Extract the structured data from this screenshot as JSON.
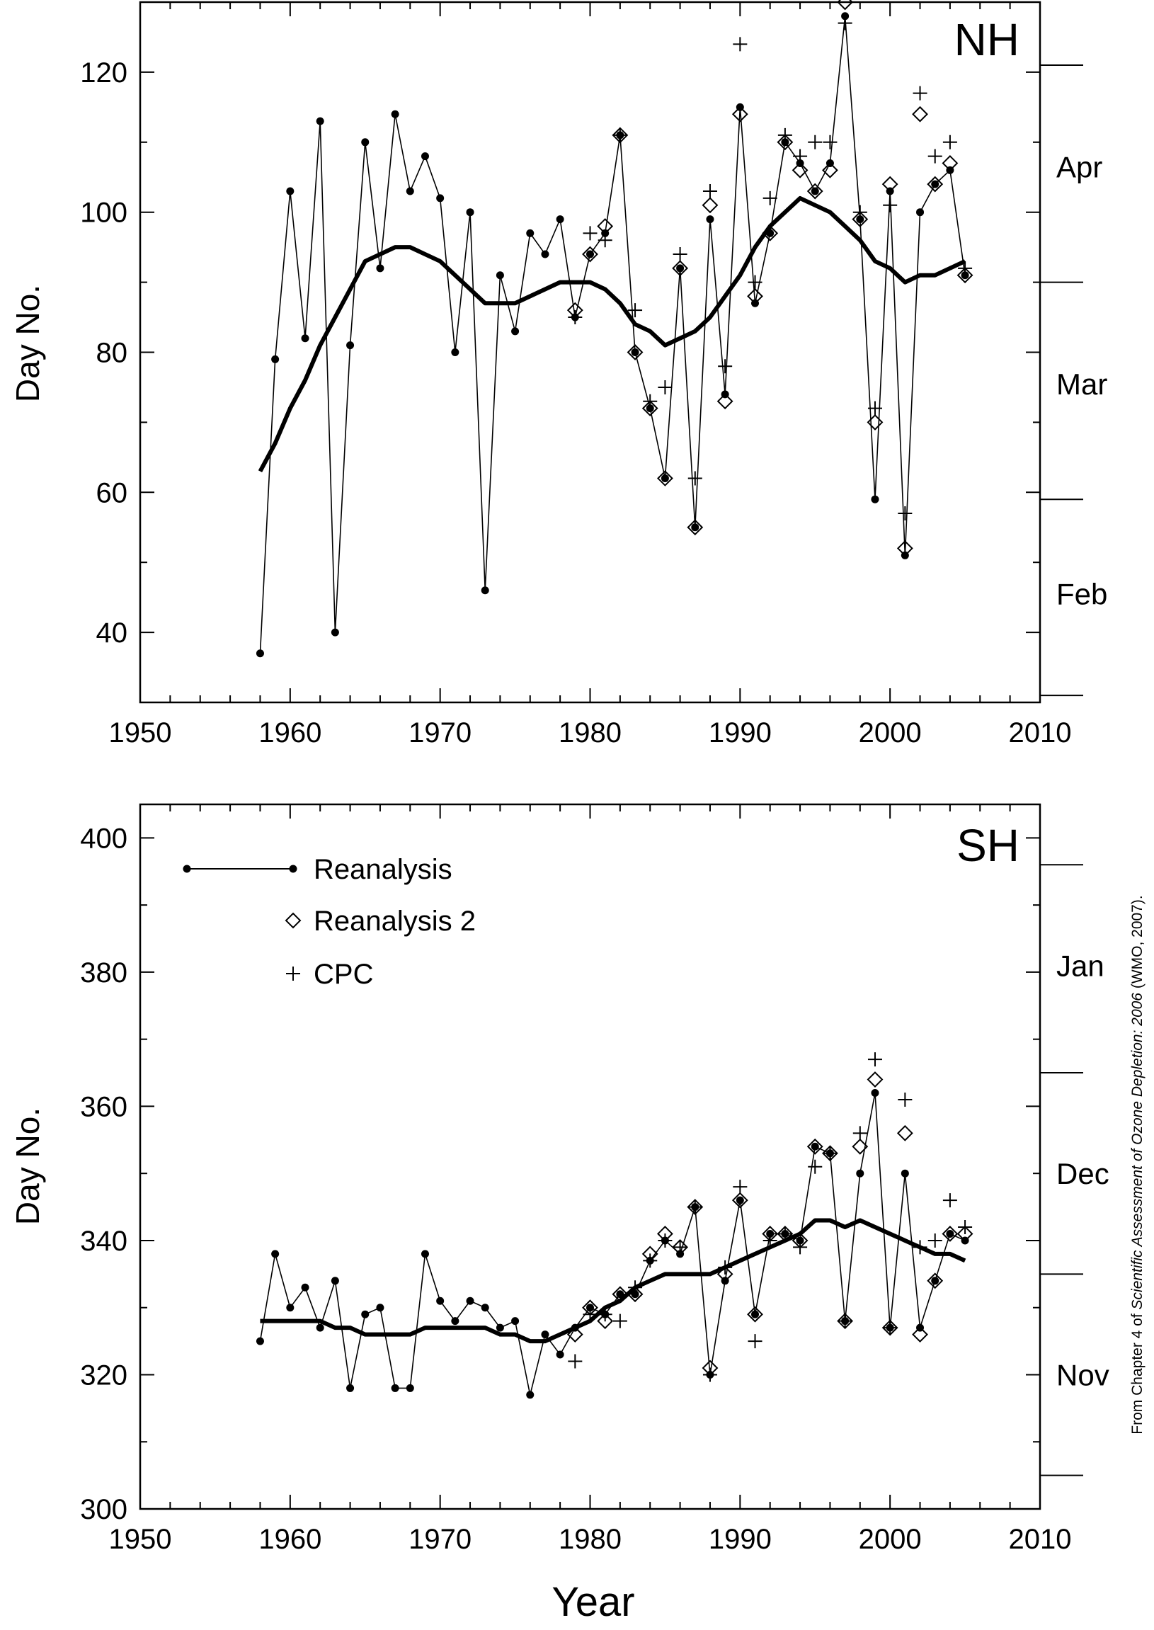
{
  "credit": {
    "prefix": "From Chapter 4 of ",
    "title": "Scientific Assessment of Ozone Depletion: 2006",
    "suffix": " (WMO, 2007)."
  },
  "legend": [
    {
      "label": "Reanalysis",
      "marker": "dot-line"
    },
    {
      "label": "Reanalysis 2",
      "marker": "diamond"
    },
    {
      "label": "CPC",
      "marker": "plus"
    }
  ],
  "chart_data": [
    {
      "type": "line",
      "panel": "NH",
      "ylabel": "Day No.",
      "xlabel": "",
      "xlim": [
        1950,
        2010
      ],
      "ylim": [
        30,
        130
      ],
      "xticks": [
        1950,
        1960,
        1970,
        1980,
        1990,
        2000,
        2010
      ],
      "yticks": [
        40,
        60,
        80,
        100,
        120
      ],
      "month_labels": [
        {
          "label": "Apr",
          "day": 106.5
        },
        {
          "label": "Mar",
          "day": 75.5
        },
        {
          "label": "Feb",
          "day": 45.5
        }
      ],
      "month_boundaries": [
        121,
        90,
        59,
        31
      ],
      "series": [
        {
          "name": "Reanalysis",
          "marker": "dot-line",
          "x": [
            1958,
            1959,
            1960,
            1961,
            1962,
            1963,
            1964,
            1965,
            1966,
            1967,
            1968,
            1969,
            1970,
            1971,
            1972,
            1973,
            1974,
            1975,
            1976,
            1977,
            1978,
            1979,
            1980,
            1981,
            1982,
            1983,
            1984,
            1985,
            1986,
            1987,
            1988,
            1989,
            1990,
            1991,
            1992,
            1993,
            1994,
            1995,
            1996,
            1997,
            1998,
            1999,
            2000,
            2001,
            2002,
            2003,
            2004,
            2005
          ],
          "values": [
            37,
            79,
            103,
            82,
            113,
            40,
            81,
            110,
            92,
            114,
            103,
            108,
            102,
            80,
            100,
            46,
            91,
            83,
            97,
            94,
            99,
            85,
            94,
            97,
            111,
            80,
            72,
            62,
            92,
            55,
            99,
            74,
            115,
            87,
            97,
            110,
            107,
            103,
            107,
            128,
            99,
            59,
            103,
            51,
            100,
            104,
            106,
            91
          ]
        },
        {
          "name": "Reanalysis 2",
          "marker": "diamond",
          "x": [
            1979,
            1980,
            1981,
            1982,
            1983,
            1984,
            1985,
            1986,
            1987,
            1988,
            1989,
            1990,
            1991,
            1992,
            1993,
            1994,
            1995,
            1996,
            1997,
            1998,
            1999,
            2000,
            2001,
            2002,
            2003,
            2004,
            2005
          ],
          "values": [
            86,
            94,
            98,
            111,
            80,
            72,
            62,
            92,
            55,
            101,
            73,
            114,
            88,
            97,
            110,
            106,
            103,
            106,
            130,
            99,
            70,
            104,
            52,
            114,
            104,
            107,
            91
          ]
        },
        {
          "name": "CPC",
          "marker": "plus",
          "x": [
            1979,
            1980,
            1981,
            1982,
            1983,
            1984,
            1985,
            1986,
            1987,
            1988,
            1989,
            1990,
            1991,
            1992,
            1993,
            1994,
            1995,
            1996,
            1997,
            1998,
            1999,
            2000,
            2001,
            2002,
            2003,
            2004,
            2005
          ],
          "values": [
            85,
            97,
            96,
            111,
            86,
            73,
            75,
            94,
            62,
            103,
            78,
            124,
            90,
            102,
            111,
            108,
            110,
            110,
            127,
            100,
            72,
            101,
            57,
            117,
            108,
            110,
            92
          ]
        },
        {
          "name": "",
          "marker": "thick-line",
          "x": [
            1958,
            1959,
            1960,
            1961,
            1962,
            1963,
            1964,
            1965,
            1966,
            1967,
            1968,
            1969,
            1970,
            1971,
            1972,
            1973,
            1974,
            1975,
            1976,
            1977,
            1978,
            1979,
            1980,
            1981,
            1982,
            1983,
            1984,
            1985,
            1986,
            1987,
            1988,
            1989,
            1990,
            1991,
            1992,
            1993,
            1994,
            1995,
            1996,
            1997,
            1998,
            1999,
            2000,
            2001,
            2002,
            2003,
            2004,
            2005
          ],
          "values": [
            63,
            67,
            72,
            76,
            81,
            85,
            89,
            93,
            94,
            95,
            95,
            94,
            93,
            91,
            89,
            87,
            87,
            87,
            88,
            89,
            90,
            90,
            90,
            89,
            87,
            84,
            83,
            81,
            82,
            83,
            85,
            88,
            91,
            95,
            98,
            100,
            102,
            101,
            100,
            98,
            96,
            93,
            92,
            90,
            91,
            91,
            92,
            93
          ]
        }
      ]
    },
    {
      "type": "line",
      "panel": "SH",
      "ylabel": "Day No.",
      "xlabel": "Year",
      "xlim": [
        1950,
        2010
      ],
      "ylim": [
        300,
        405
      ],
      "xticks": [
        1950,
        1960,
        1970,
        1980,
        1990,
        2000,
        2010
      ],
      "yticks": [
        300,
        320,
        340,
        360,
        380,
        400
      ],
      "month_labels": [
        {
          "label": "Jan",
          "day": 381
        },
        {
          "label": "Dec",
          "day": 350
        },
        {
          "label": "Nov",
          "day": 320
        }
      ],
      "month_boundaries": [
        396,
        365,
        335,
        305
      ],
      "series": [
        {
          "name": "Reanalysis",
          "marker": "dot-line",
          "x": [
            1958,
            1959,
            1960,
            1961,
            1962,
            1963,
            1964,
            1965,
            1966,
            1967,
            1968,
            1969,
            1970,
            1971,
            1972,
            1973,
            1974,
            1975,
            1976,
            1977,
            1978,
            1979,
            1980,
            1981,
            1982,
            1983,
            1984,
            1985,
            1986,
            1987,
            1988,
            1989,
            1990,
            1991,
            1992,
            1993,
            1994,
            1995,
            1996,
            1997,
            1998,
            1999,
            2000,
            2001,
            2002,
            2003,
            2004,
            2005
          ],
          "values": [
            325,
            338,
            330,
            333,
            327,
            334,
            318,
            329,
            330,
            318,
            318,
            338,
            331,
            328,
            331,
            330,
            327,
            328,
            317,
            326,
            323,
            327,
            330,
            329,
            332,
            332,
            337,
            340,
            338,
            345,
            320,
            334,
            346,
            329,
            341,
            341,
            340,
            354,
            353,
            328,
            350,
            362,
            327,
            350,
            327,
            334,
            341,
            340
          ]
        },
        {
          "name": "Reanalysis 2",
          "marker": "diamond",
          "x": [
            1979,
            1980,
            1981,
            1982,
            1983,
            1984,
            1985,
            1986,
            1987,
            1988,
            1989,
            1990,
            1991,
            1992,
            1993,
            1994,
            1995,
            1996,
            1997,
            1998,
            1999,
            2000,
            2001,
            2002,
            2003,
            2004,
            2005
          ],
          "values": [
            326,
            330,
            328,
            332,
            332,
            338,
            341,
            339,
            345,
            321,
            335,
            346,
            329,
            341,
            341,
            340,
            354,
            353,
            328,
            354,
            364,
            327,
            356,
            326,
            334,
            341,
            341
          ]
        },
        {
          "name": "CPC",
          "marker": "plus",
          "x": [
            1979,
            1980,
            1981,
            1982,
            1983,
            1984,
            1985,
            1986,
            1987,
            1988,
            1989,
            1990,
            1991,
            1992,
            1993,
            1994,
            1995,
            1996,
            1997,
            1998,
            1999,
            2000,
            2001,
            2002,
            2003,
            2004,
            2005
          ],
          "values": [
            322,
            329,
            329,
            328,
            333,
            337,
            340,
            339,
            345,
            320,
            336,
            348,
            325,
            340,
            341,
            339,
            351,
            353,
            328,
            356,
            367,
            327,
            361,
            339,
            340,
            346,
            342
          ]
        },
        {
          "name": "",
          "marker": "thick-line",
          "x": [
            1958,
            1959,
            1960,
            1961,
            1962,
            1963,
            1964,
            1965,
            1966,
            1967,
            1968,
            1969,
            1970,
            1971,
            1972,
            1973,
            1974,
            1975,
            1976,
            1977,
            1978,
            1979,
            1980,
            1981,
            1982,
            1983,
            1984,
            1985,
            1986,
            1987,
            1988,
            1989,
            1990,
            1991,
            1992,
            1993,
            1994,
            1995,
            1996,
            1997,
            1998,
            1999,
            2000,
            2001,
            2002,
            2003,
            2004,
            2005
          ],
          "values": [
            328,
            328,
            328,
            328,
            328,
            327,
            327,
            326,
            326,
            326,
            326,
            327,
            327,
            327,
            327,
            327,
            326,
            326,
            325,
            325,
            326,
            327,
            328,
            330,
            331,
            333,
            334,
            335,
            335,
            335,
            335,
            336,
            337,
            338,
            339,
            340,
            341,
            343,
            343,
            342,
            343,
            342,
            341,
            340,
            339,
            338,
            338,
            337
          ]
        }
      ]
    }
  ]
}
